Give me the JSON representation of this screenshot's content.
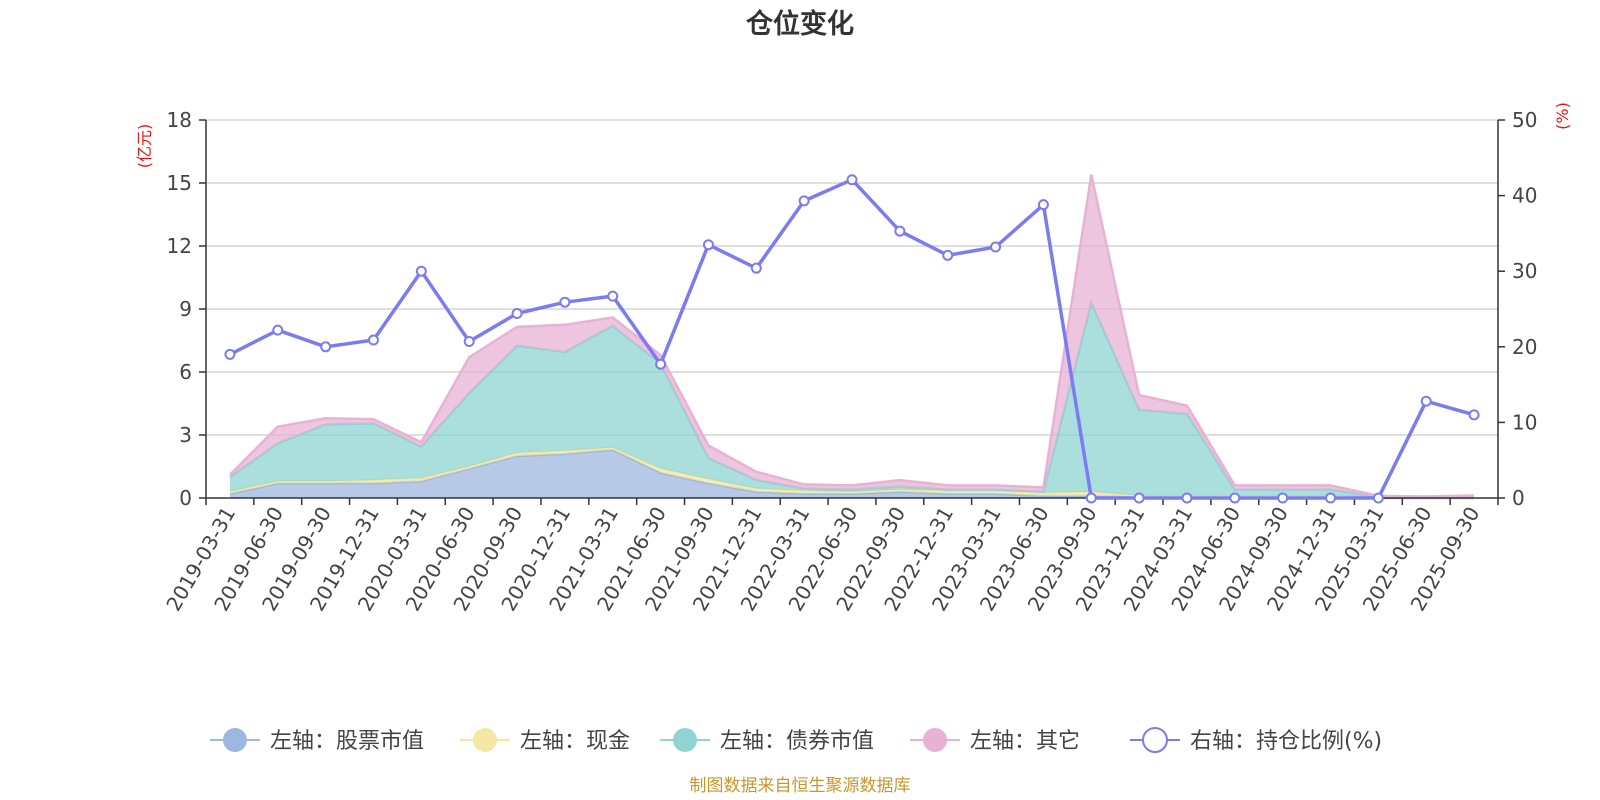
{
  "chart_data": {
    "type": "area",
    "title": "仓位变化",
    "left_axis": {
      "unit": "(亿元)",
      "ylim": [
        0,
        18
      ],
      "ticks": [
        0,
        3,
        6,
        9,
        12,
        15,
        18
      ]
    },
    "right_axis": {
      "unit": "(%)",
      "ylim": [
        0,
        50
      ],
      "ticks": [
        0,
        10,
        20,
        30,
        40,
        50
      ]
    },
    "categories": [
      "2019-03-31",
      "2019-06-30",
      "2019-09-30",
      "2019-12-31",
      "2020-03-31",
      "2020-06-30",
      "2020-09-30",
      "2020-12-31",
      "2021-03-31",
      "2021-06-30",
      "2021-09-30",
      "2021-12-31",
      "2022-03-31",
      "2022-06-30",
      "2022-09-30",
      "2022-12-31",
      "2023-03-31",
      "2023-06-30",
      "2023-09-30",
      "2023-12-31",
      "2024-03-31",
      "2024-06-30",
      "2024-09-30",
      "2024-12-31",
      "2025-03-31",
      "2025-06-30",
      "2025-09-30"
    ],
    "series": [
      {
        "name": "左轴：股票市值",
        "axis": "left",
        "stack": true,
        "color": "#9db8e0",
        "values": [
          0.2,
          0.7,
          0.7,
          0.7,
          0.8,
          1.4,
          2.0,
          2.1,
          2.3,
          1.2,
          0.7,
          0.3,
          0.2,
          0.2,
          0.3,
          0.2,
          0.2,
          0.1,
          0.1,
          0.05,
          0.05,
          0.05,
          0.05,
          0.05,
          0,
          0,
          0
        ]
      },
      {
        "name": "左轴：现金",
        "axis": "left",
        "stack": true,
        "color": "#f6e7a4",
        "values": [
          0.1,
          0.1,
          0.1,
          0.15,
          0.15,
          0.1,
          0.15,
          0.15,
          0.1,
          0.2,
          0.2,
          0.15,
          0.15,
          0.1,
          0.1,
          0.15,
          0.15,
          0.15,
          0.2,
          0.05,
          0.05,
          0.05,
          0.05,
          0.05,
          0.05,
          0.02,
          0.02
        ]
      },
      {
        "name": "左轴：债券市值",
        "axis": "left",
        "stack": true,
        "color": "#8fd4d2",
        "values": [
          0.7,
          1.8,
          2.7,
          2.7,
          1.5,
          3.5,
          5.1,
          4.7,
          5.8,
          5.0,
          1.0,
          0.4,
          0.1,
          0.1,
          0.15,
          0.05,
          0.05,
          0.05,
          9.0,
          4.1,
          3.9,
          0.3,
          0.3,
          0.3,
          0,
          0,
          0
        ]
      },
      {
        "name": "左轴：其它",
        "axis": "left",
        "stack": true,
        "color": "#e8b2d4",
        "values": [
          0.1,
          0.8,
          0.3,
          0.2,
          0.2,
          1.7,
          0.9,
          1.3,
          0.4,
          0.4,
          0.6,
          0.4,
          0.2,
          0.2,
          0.3,
          0.2,
          0.2,
          0.2,
          6.1,
          0.7,
          0.4,
          0.2,
          0.2,
          0.2,
          0.05,
          0.05,
          0.1
        ]
      },
      {
        "name": "右轴：持仓比例(%)",
        "axis": "right",
        "stack": false,
        "color": "#7b7bf2",
        "values": [
          19.0,
          22.2,
          20.0,
          20.9,
          30.0,
          20.7,
          24.4,
          25.9,
          26.7,
          17.7,
          33.5,
          30.4,
          39.3,
          42.1,
          35.3,
          32.1,
          33.2,
          38.8,
          0,
          0,
          0,
          0,
          0,
          0,
          0,
          12.8,
          11.0
        ]
      }
    ],
    "source_note": "制图数据来自恒生聚源数据库"
  }
}
